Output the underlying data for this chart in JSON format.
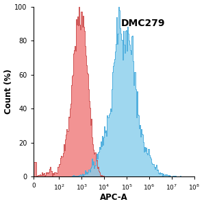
{
  "title": "DMC279",
  "xlabel": "APC-A",
  "ylabel": "Count (%)",
  "ylim": [
    0,
    100
  ],
  "yticks": [
    0,
    20,
    40,
    60,
    80,
    100
  ],
  "red_color": "#F08080",
  "red_edge_color": "#CC5050",
  "blue_color": "#87CEEB",
  "blue_edge_color": "#4AACDD",
  "background_color": "#ffffff",
  "red_peak_log": 2.95,
  "red_sigma": 0.32,
  "blue_peak_log": 4.85,
  "blue_sigma": 0.65
}
